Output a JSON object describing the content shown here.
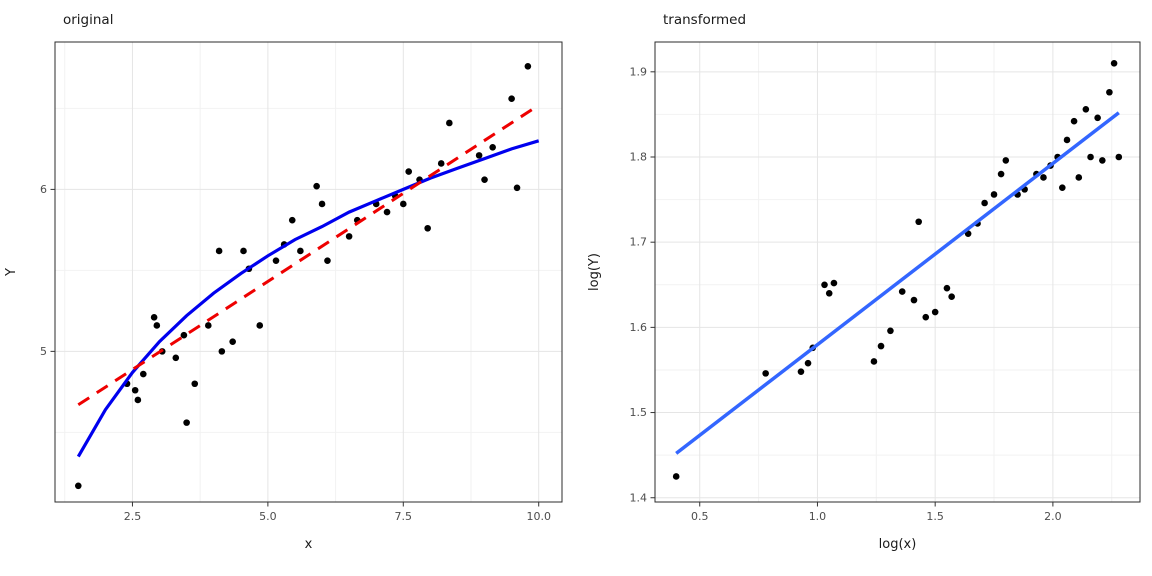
{
  "page": {
    "background": "#ffffff"
  },
  "chart_data": [
    {
      "type": "scatter",
      "title": "original",
      "xlabel": "x",
      "ylabel": "Y",
      "xlim": [
        1.07,
        10.43
      ],
      "ylim": [
        4.07,
        6.91
      ],
      "xticks": [
        2.5,
        5,
        7.5,
        10
      ],
      "xtick_labels": [
        "2.5",
        "5.0",
        "7.5",
        "10.0"
      ],
      "yticks": [
        5,
        6
      ],
      "ytick_labels": [
        "5",
        "6"
      ],
      "grid": "major+minor",
      "legend": "none",
      "point_color": "#000000",
      "points": [
        [
          1.5,
          4.17
        ],
        [
          2.4,
          4.8
        ],
        [
          2.55,
          4.76
        ],
        [
          2.6,
          4.7
        ],
        [
          2.7,
          4.86
        ],
        [
          2.9,
          5.21
        ],
        [
          2.95,
          5.16
        ],
        [
          3.05,
          5.0
        ],
        [
          3.3,
          4.96
        ],
        [
          3.45,
          5.1
        ],
        [
          3.5,
          4.56
        ],
        [
          3.65,
          4.8
        ],
        [
          3.9,
          5.16
        ],
        [
          4.1,
          5.62
        ],
        [
          4.15,
          5.0
        ],
        [
          4.35,
          5.06
        ],
        [
          4.55,
          5.62
        ],
        [
          4.65,
          5.51
        ],
        [
          4.85,
          5.16
        ],
        [
          5.15,
          5.56
        ],
        [
          5.3,
          5.66
        ],
        [
          5.45,
          5.81
        ],
        [
          5.6,
          5.62
        ],
        [
          5.9,
          6.02
        ],
        [
          6.0,
          5.91
        ],
        [
          6.1,
          5.56
        ],
        [
          6.5,
          5.71
        ],
        [
          6.65,
          5.81
        ],
        [
          7.0,
          5.91
        ],
        [
          7.2,
          5.86
        ],
        [
          7.35,
          5.96
        ],
        [
          7.5,
          5.91
        ],
        [
          7.6,
          6.11
        ],
        [
          7.8,
          6.06
        ],
        [
          7.95,
          5.76
        ],
        [
          8.2,
          6.16
        ],
        [
          8.35,
          6.41
        ],
        [
          8.9,
          6.21
        ],
        [
          9.0,
          6.06
        ],
        [
          9.15,
          6.26
        ],
        [
          9.5,
          6.56
        ],
        [
          9.6,
          6.01
        ],
        [
          9.8,
          6.76
        ]
      ],
      "lines": [
        {
          "name": "log-fit-curve",
          "color": "#0000EE",
          "width": 3.2,
          "dash": "",
          "points": [
            [
              1.5,
              4.35
            ],
            [
              2.0,
              4.64
            ],
            [
              2.5,
              4.87
            ],
            [
              3.0,
              5.06
            ],
            [
              3.5,
              5.22
            ],
            [
              4.0,
              5.36
            ],
            [
              4.5,
              5.48
            ],
            [
              5.0,
              5.59
            ],
            [
              5.5,
              5.69
            ],
            [
              6.0,
              5.77
            ],
            [
              6.5,
              5.86
            ],
            [
              7.0,
              5.93
            ],
            [
              7.5,
              6.0
            ],
            [
              8.0,
              6.07
            ],
            [
              8.5,
              6.13
            ],
            [
              9.0,
              6.19
            ],
            [
              9.5,
              6.25
            ],
            [
              10.0,
              6.3
            ]
          ]
        },
        {
          "name": "linear-fit-dashed",
          "color": "#EE0000",
          "width": 3,
          "dash": "13,9",
          "points": [
            [
              1.5,
              4.67
            ],
            [
              10.0,
              6.52
            ]
          ]
        }
      ]
    },
    {
      "type": "scatter",
      "title": "transformed",
      "xlabel": "log(x)",
      "ylabel": "log(Y)",
      "xlim": [
        0.31,
        2.37
      ],
      "ylim": [
        1.395,
        1.935
      ],
      "xticks": [
        0.5,
        1,
        1.5,
        2
      ],
      "xtick_labels": [
        "0.5",
        "1.0",
        "1.5",
        "2.0"
      ],
      "yticks": [
        1.4,
        1.5,
        1.6,
        1.7,
        1.8,
        1.9
      ],
      "ytick_labels": [
        "1.4",
        "1.5",
        "1.6",
        "1.7",
        "1.8",
        "1.9"
      ],
      "grid": "major+minor",
      "legend": "none",
      "point_color": "#000000",
      "points": [
        [
          0.4,
          1.425
        ],
        [
          0.78,
          1.546
        ],
        [
          0.93,
          1.548
        ],
        [
          0.96,
          1.558
        ],
        [
          0.98,
          1.576
        ],
        [
          1.03,
          1.65
        ],
        [
          1.05,
          1.64
        ],
        [
          1.07,
          1.652
        ],
        [
          1.24,
          1.56
        ],
        [
          1.27,
          1.578
        ],
        [
          1.31,
          1.596
        ],
        [
          1.36,
          1.642
        ],
        [
          1.41,
          1.632
        ],
        [
          1.43,
          1.724
        ],
        [
          1.46,
          1.612
        ],
        [
          1.5,
          1.618
        ],
        [
          1.55,
          1.646
        ],
        [
          1.57,
          1.636
        ],
        [
          1.64,
          1.71
        ],
        [
          1.68,
          1.722
        ],
        [
          1.71,
          1.746
        ],
        [
          1.75,
          1.756
        ],
        [
          1.78,
          1.78
        ],
        [
          1.8,
          1.796
        ],
        [
          1.85,
          1.756
        ],
        [
          1.88,
          1.762
        ],
        [
          1.93,
          1.78
        ],
        [
          1.96,
          1.776
        ],
        [
          1.99,
          1.79
        ],
        [
          2.02,
          1.8
        ],
        [
          2.04,
          1.764
        ],
        [
          2.06,
          1.82
        ],
        [
          2.09,
          1.842
        ],
        [
          2.11,
          1.776
        ],
        [
          2.14,
          1.856
        ],
        [
          2.16,
          1.8
        ],
        [
          2.19,
          1.846
        ],
        [
          2.21,
          1.796
        ],
        [
          2.24,
          1.876
        ],
        [
          2.26,
          1.91
        ],
        [
          2.28,
          1.8
        ]
      ],
      "lines": [
        {
          "name": "linear-fit",
          "color": "#3366FF",
          "width": 3.5,
          "dash": "",
          "points": [
            [
              0.4,
              1.452
            ],
            [
              2.28,
              1.852
            ]
          ]
        }
      ]
    }
  ]
}
